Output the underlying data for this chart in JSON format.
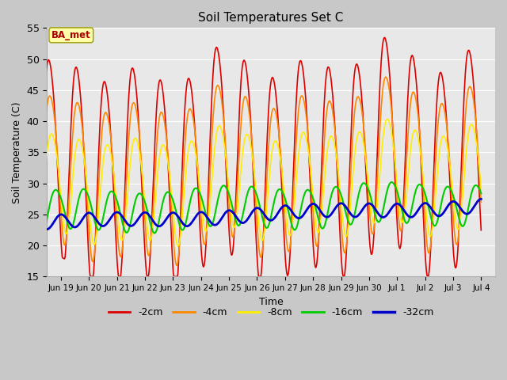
{
  "title": "Soil Temperatures Set C",
  "xlabel": "Time",
  "ylabel": "Soil Temperature (C)",
  "ylim": [
    15,
    55
  ],
  "background_color": "#e8e8e8",
  "series_labels": [
    "-2cm",
    "-4cm",
    "-8cm",
    "-16cm",
    "-32cm"
  ],
  "series_colors": [
    "#dd0000",
    "#ff8800",
    "#ffee00",
    "#00cc00",
    "#0000cc"
  ],
  "series_linewidths": [
    1.2,
    1.2,
    1.2,
    1.5,
    2.0
  ],
  "tick_labels": [
    "Jun 19",
    "Jun 20",
    "Jun 21",
    "Jun 22",
    "Jun 23",
    "Jun 24",
    "Jun 25",
    "Jun 26",
    "Jun 27",
    "Jun 28",
    "Jun 29",
    "Jun 30",
    "Jul 1",
    "Jul 2",
    "Jul 3",
    "Jul 4"
  ],
  "yticks": [
    15,
    20,
    25,
    30,
    35,
    40,
    45,
    50,
    55
  ],
  "annotation_text": "BA_met",
  "annotation_color": "#aa0000",
  "annotation_bg": "#ffffaa",
  "annotation_border": "#999900"
}
